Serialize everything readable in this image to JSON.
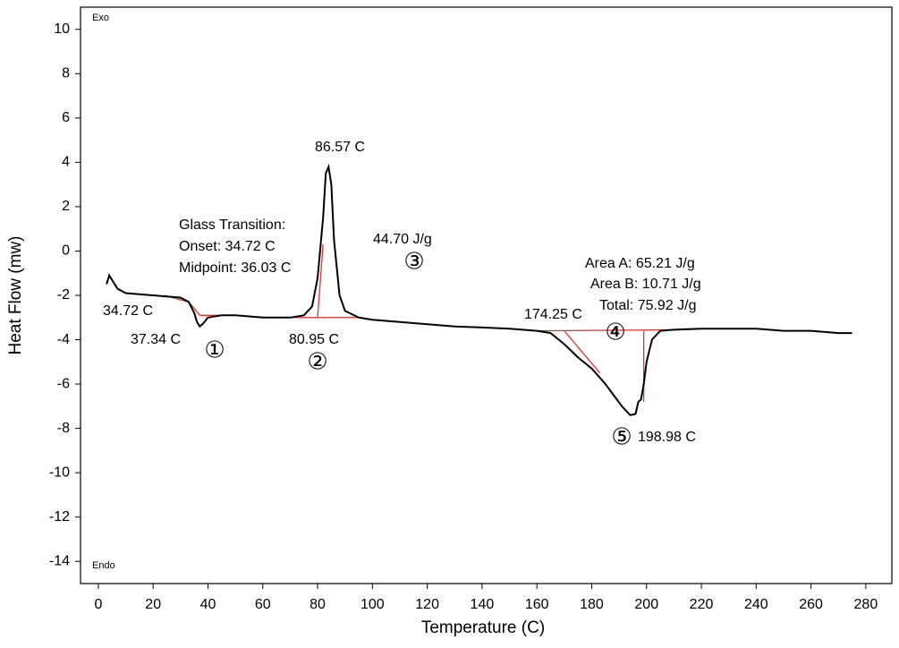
{
  "chart_data": {
    "type": "line",
    "xlabel": "Temperature (C)",
    "ylabel": "Heat Flow (mw)",
    "xlim": [
      -6.5,
      289.5
    ],
    "ylim": [
      -15,
      11
    ],
    "xticks": [
      0,
      20,
      40,
      60,
      80,
      100,
      120,
      140,
      160,
      180,
      200,
      220,
      240,
      260,
      280
    ],
    "yticks": [
      -14,
      -12,
      -10,
      -8,
      -6,
      -4,
      -2,
      0,
      2,
      4,
      6,
      8,
      10
    ],
    "series": [
      {
        "color": "#000000",
        "x": [
          3,
          4,
          5,
          7,
          10,
          15,
          20,
          25,
          30,
          33,
          35,
          36,
          37,
          38,
          40,
          45,
          50,
          60,
          70,
          75,
          78,
          80,
          82,
          83,
          84,
          85,
          86,
          88,
          90,
          95,
          100,
          110,
          120,
          130,
          140,
          150,
          160,
          165,
          170,
          175,
          180,
          185,
          188,
          191,
          194,
          196,
          197,
          198,
          199,
          200,
          202,
          205,
          210,
          220,
          230,
          240,
          250,
          260,
          270,
          275
        ],
        "values": [
          -1.5,
          -1.1,
          -1.3,
          -1.7,
          -1.9,
          -1.95,
          -2.0,
          -2.05,
          -2.1,
          -2.3,
          -2.8,
          -3.2,
          -3.4,
          -3.3,
          -3.0,
          -2.9,
          -2.9,
          -3.0,
          -3.0,
          -2.9,
          -2.5,
          -1.2,
          1.5,
          3.5,
          3.8,
          3.0,
          0.5,
          -2.0,
          -2.7,
          -3.0,
          -3.1,
          -3.2,
          -3.3,
          -3.4,
          -3.45,
          -3.5,
          -3.6,
          -3.7,
          -4.2,
          -4.8,
          -5.3,
          -6.0,
          -6.5,
          -7.0,
          -7.4,
          -7.35,
          -6.8,
          -6.7,
          -6.0,
          -5.0,
          -4.0,
          -3.6,
          -3.55,
          -3.5,
          -3.5,
          -3.5,
          -3.6,
          -3.6,
          -3.7,
          -3.7
        ]
      }
    ],
    "baselines": {
      "color": "#e03030",
      "lines": [
        {
          "x": [
            24,
            33
          ],
          "values": [
            -2.0,
            -2.3
          ]
        },
        {
          "x": [
            33,
            37
          ],
          "values": [
            -2.3,
            -2.9
          ]
        },
        {
          "x": [
            37,
            51
          ],
          "values": [
            -2.9,
            -2.9
          ]
        },
        {
          "x": [
            69,
            96
          ],
          "values": [
            -3.0,
            -3.0
          ]
        },
        {
          "x": [
            80,
            82
          ],
          "values": [
            -3.0,
            0.3
          ]
        },
        {
          "x": [
            160,
            213
          ],
          "values": [
            -3.6,
            -3.55
          ]
        },
        {
          "x": [
            170,
            183
          ],
          "values": [
            -3.6,
            -5.5
          ]
        },
        {
          "x": [
            198.98,
            198.98
          ],
          "values": [
            -3.6,
            -6.8
          ]
        }
      ]
    },
    "annotations": [
      "Exo",
      "Endo",
      "86.57 C",
      "Glass Transition:",
      "Onset: 34.72 C",
      "Midpoint: 36.03 C",
      "44.70 J/g",
      "③",
      "34.72 C",
      "37.34 C",
      "①",
      "80.95 C",
      "②",
      "174.25 C",
      "Area A: 65.21 J/g",
      "Area B: 10.71 J/g",
      "Total: 75.92 J/g",
      "④",
      "⑤",
      "198.98 C"
    ]
  }
}
